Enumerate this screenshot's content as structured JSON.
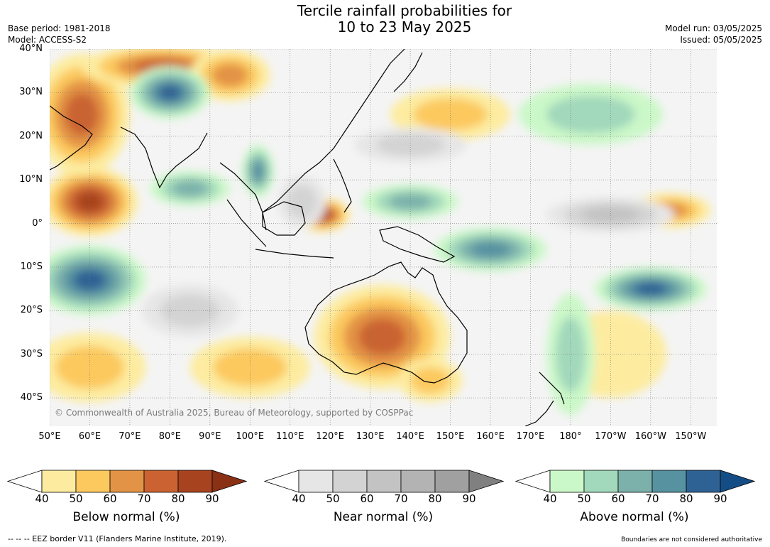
{
  "title": {
    "line1": "Tercile rainfall probabilities for",
    "line2": "10 to 23 May 2025"
  },
  "meta": {
    "base_period": "Base period: 1981-2018",
    "model": "Model: ACCESS-S2",
    "model_run": "Model run: 03/05/2025",
    "issued": "Issued: 05/05/2025"
  },
  "map": {
    "latitudes": [
      {
        "lat": 40,
        "label": "40°N"
      },
      {
        "lat": 30,
        "label": "30°N"
      },
      {
        "lat": 20,
        "label": "20°N"
      },
      {
        "lat": 10,
        "label": "10°N"
      },
      {
        "lat": 0,
        "label": "0°"
      },
      {
        "lat": -10,
        "label": "10°S"
      },
      {
        "lat": -20,
        "label": "20°S"
      },
      {
        "lat": -30,
        "label": "30°S"
      },
      {
        "lat": -40,
        "label": "40°S"
      }
    ],
    "longitudes": [
      {
        "lon": 50,
        "label": "50°E"
      },
      {
        "lon": 60,
        "label": "60°E"
      },
      {
        "lon": 70,
        "label": "70°E"
      },
      {
        "lon": 80,
        "label": "80°E"
      },
      {
        "lon": 90,
        "label": "90°E"
      },
      {
        "lon": 100,
        "label": "100°E"
      },
      {
        "lon": 110,
        "label": "110°E"
      },
      {
        "lon": 120,
        "label": "120°E"
      },
      {
        "lon": 130,
        "label": "130°E"
      },
      {
        "lon": 140,
        "label": "140°E"
      },
      {
        "lon": 150,
        "label": "150°E"
      },
      {
        "lon": 160,
        "label": "160°E"
      },
      {
        "lon": 170,
        "label": "170°E"
      },
      {
        "lon": 180,
        "label": "180°"
      },
      {
        "lon": 190,
        "label": "170°W"
      },
      {
        "lon": 200,
        "label": "160°W"
      },
      {
        "lon": 210,
        "label": "150°W"
      }
    ],
    "copyright": "© Commonwealth of Australia 2025, Bureau of Meteorology, supported by COSPPac"
  },
  "colorbars": [
    {
      "name": "below",
      "title": "Below normal (%)",
      "ticks": [
        "40",
        "50",
        "60",
        "70",
        "80",
        "90"
      ],
      "colors": [
        "#ffffff",
        "#fdeca0",
        "#fcc95e",
        "#e39345",
        "#ca6331",
        "#a8431f",
        "#8a3015"
      ]
    },
    {
      "name": "near",
      "title": "Near normal (%)",
      "ticks": [
        "40",
        "50",
        "60",
        "70",
        "80",
        "90"
      ],
      "colors": [
        "#ffffff",
        "#e6e6e6",
        "#d3d3d3",
        "#c3c3c3",
        "#b3b3b3",
        "#a0a0a0",
        "#808080"
      ]
    },
    {
      "name": "above",
      "title": "Above normal (%)",
      "ticks": [
        "40",
        "50",
        "60",
        "70",
        "80",
        "90"
      ],
      "colors": [
        "#ffffff",
        "#cbf8c8",
        "#a2d8bb",
        "#7cb1ab",
        "#5792a1",
        "#2f6294",
        "#144d86"
      ]
    }
  ],
  "footer": {
    "eez": "--  --  -- EEZ border V11 (Flanders Marine Institute, 2019).",
    "boundaries": "Boundaries are not considered authoritative"
  },
  "fields": [
    {
      "cat": "below",
      "lon": 60,
      "lat": 5,
      "rx": 12,
      "ry": 8,
      "level": 5
    },
    {
      "cat": "below",
      "lon": 58,
      "lat": 25,
      "rx": 12,
      "ry": 14,
      "level": 4
    },
    {
      "cat": "below",
      "lon": 78,
      "lat": 36,
      "rx": 20,
      "ry": 5,
      "level": 4
    },
    {
      "cat": "below",
      "lon": 95,
      "lat": 34,
      "rx": 10,
      "ry": 6,
      "level": 3
    },
    {
      "cat": "below",
      "lon": 133,
      "lat": -26,
      "rx": 17,
      "ry": 12,
      "level": 4
    },
    {
      "cat": "below",
      "lon": 118,
      "lat": 2,
      "rx": 7,
      "ry": 4,
      "level": 5
    },
    {
      "cat": "below",
      "lon": 150,
      "lat": 25,
      "rx": 15,
      "ry": 6,
      "level": 2
    },
    {
      "cat": "below",
      "lon": 205,
      "lat": 3,
      "rx": 10,
      "ry": 4,
      "level": 3
    },
    {
      "cat": "below",
      "lon": 60,
      "lat": -33,
      "rx": 14,
      "ry": 8,
      "level": 2
    },
    {
      "cat": "below",
      "lon": 100,
      "lat": -33,
      "rx": 15,
      "ry": 7,
      "level": 2
    },
    {
      "cat": "below",
      "lon": 190,
      "lat": -30,
      "rx": 14,
      "ry": 10,
      "level": 1
    },
    {
      "cat": "below",
      "lon": 145,
      "lat": -36,
      "rx": 8,
      "ry": 5,
      "level": 2
    },
    {
      "cat": "above",
      "lon": 60,
      "lat": -13,
      "rx": 14,
      "ry": 8,
      "level": 5
    },
    {
      "cat": "above",
      "lon": 80,
      "lat": 30,
      "rx": 10,
      "ry": 6,
      "level": 5
    },
    {
      "cat": "above",
      "lon": 85,
      "lat": 8,
      "rx": 10,
      "ry": 4,
      "level": 3
    },
    {
      "cat": "above",
      "lon": 140,
      "lat": 5,
      "rx": 12,
      "ry": 4,
      "level": 3
    },
    {
      "cat": "above",
      "lon": 160,
      "lat": -6,
      "rx": 14,
      "ry": 5,
      "level": 4
    },
    {
      "cat": "above",
      "lon": 200,
      "lat": -15,
      "rx": 14,
      "ry": 5,
      "level": 5
    },
    {
      "cat": "above",
      "lon": 180,
      "lat": -30,
      "rx": 6,
      "ry": 14,
      "level": 2
    },
    {
      "cat": "above",
      "lon": 185,
      "lat": 25,
      "rx": 18,
      "ry": 7,
      "level": 2
    },
    {
      "cat": "above",
      "lon": 102,
      "lat": 12,
      "rx": 4,
      "ry": 6,
      "level": 4
    },
    {
      "cat": "near",
      "lon": 190,
      "lat": 2,
      "rx": 16,
      "ry": 4,
      "level": 3
    },
    {
      "cat": "near",
      "lon": 85,
      "lat": -20,
      "rx": 12,
      "ry": 6,
      "level": 2
    },
    {
      "cat": "near",
      "lon": 140,
      "lat": 18,
      "rx": 14,
      "ry": 4,
      "level": 2
    },
    {
      "cat": "near",
      "lon": 113,
      "lat": 5,
      "rx": 6,
      "ry": 6,
      "level": 2
    }
  ]
}
